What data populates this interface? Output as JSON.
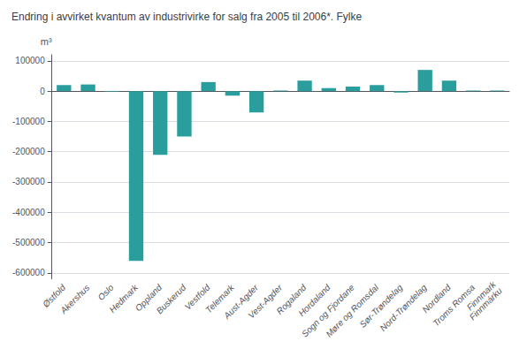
{
  "chart_data": {
    "type": "bar",
    "title": "Endring i avvirket kvantum av industrivirke for salg fra 2005 til 2006*. Fylke",
    "ylabel": "m³",
    "categories": [
      "Østfold",
      "Akershus",
      "Oslo",
      "Hedmark",
      "Oppland",
      "Buskerud",
      "Vestfold",
      "Telemark",
      "Aust-Agder",
      "Vest-Agder",
      "Rogaland",
      "Hordaland",
      "Sogn og Fjordane",
      "Møre og Romsdal",
      "Sør-Trøndelag",
      "Nord-Trøndelag",
      "Nordland",
      "Troms Romsa",
      "Finnmark\nFinnmárku"
    ],
    "values": [
      20000,
      22000,
      -2000,
      -560000,
      -210000,
      -150000,
      30000,
      -15000,
      -70000,
      2000,
      35000,
      10000,
      15000,
      20000,
      -5000,
      70000,
      35000,
      2000,
      2000
    ],
    "color": "#2a9d9d",
    "ylim": [
      -620000,
      120000
    ],
    "yticks": [
      100000,
      0,
      -100000,
      -200000,
      -300000,
      -400000,
      -500000,
      -600000
    ],
    "grid": true
  }
}
